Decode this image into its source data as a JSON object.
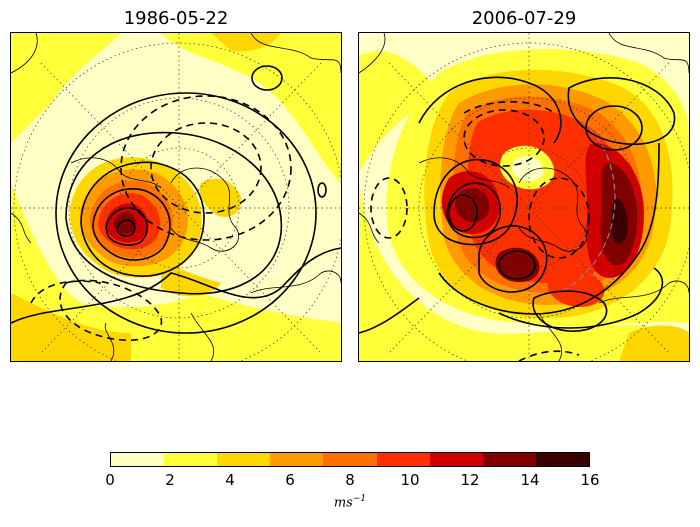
{
  "panels": [
    {
      "title": "1986-05-22"
    },
    {
      "title": "2006-07-29"
    }
  ],
  "colorbar": {
    "ticks": [
      "0",
      "2",
      "4",
      "6",
      "8",
      "10",
      "12",
      "14",
      "16"
    ],
    "colors": [
      "#ffffc6",
      "#ffff3a",
      "#ffd700",
      "#ff9a00",
      "#ff7000",
      "#ff3000",
      "#d10000",
      "#800000",
      "#3a0000"
    ],
    "unit_base": "ms",
    "unit_exponent": "−1"
  }
}
